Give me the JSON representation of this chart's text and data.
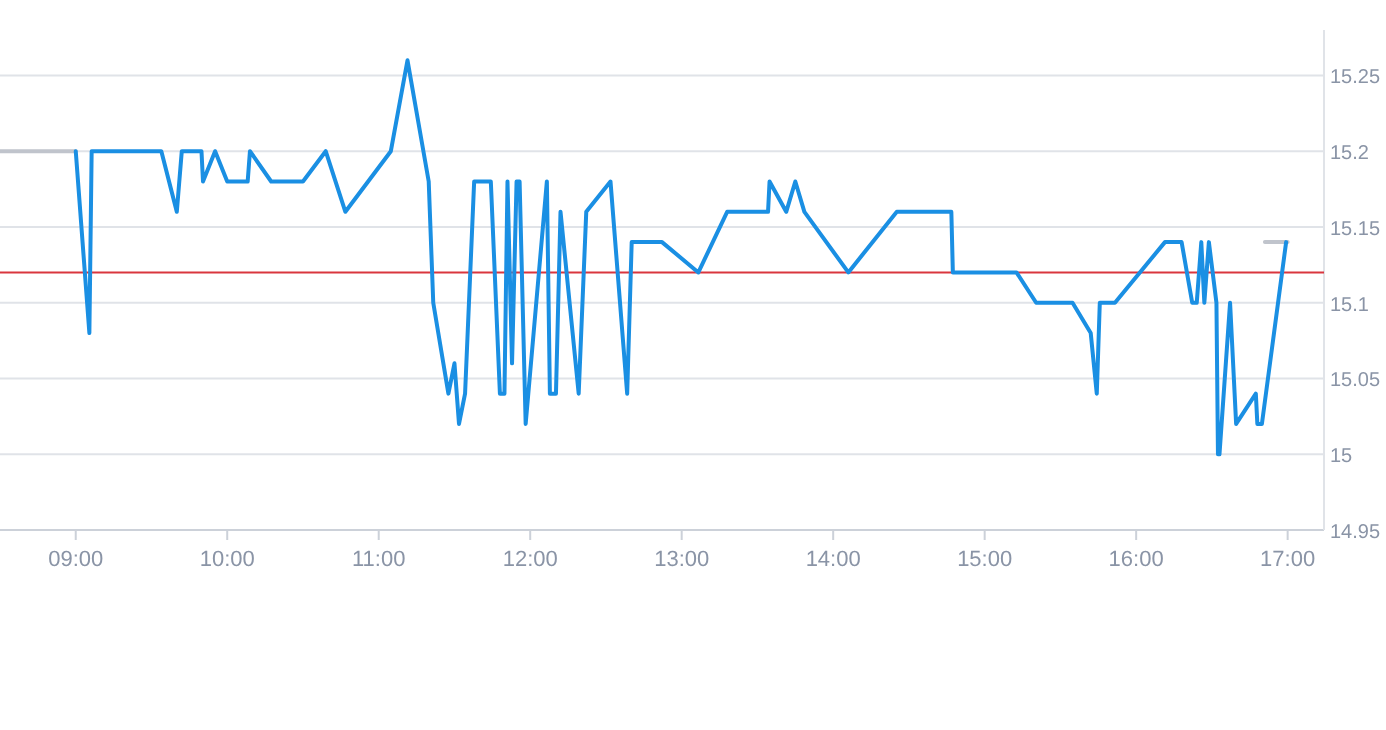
{
  "chart_data": {
    "type": "line",
    "xlim": [
      8.5,
      17.24
    ],
    "ylim": [
      14.95,
      15.28
    ],
    "xticks": [
      {
        "value": 9,
        "label": "09:00"
      },
      {
        "value": 10,
        "label": "10:00"
      },
      {
        "value": 11,
        "label": "11:00"
      },
      {
        "value": 12,
        "label": "12:00"
      },
      {
        "value": 13,
        "label": "13:00"
      },
      {
        "value": 14,
        "label": "14:00"
      },
      {
        "value": 15,
        "label": "15:00"
      },
      {
        "value": 16,
        "label": "16:00"
      },
      {
        "value": 17,
        "label": "17:00"
      }
    ],
    "yticks": [
      14.95,
      15,
      15.05,
      15.1,
      15.15,
      15.2,
      15.25
    ],
    "grid": "y",
    "marker": "none",
    "line_style": "solid",
    "ref_lines": [
      {
        "axis": "y",
        "value": 15.12,
        "color": "#d9363e"
      }
    ],
    "series": [
      {
        "color": "#c0c4cc",
        "x": [
          8.5,
          9.0,
          12.0,
          16.85,
          17.0
        ],
        "values": [
          15.2,
          15.2,
          null,
          15.14,
          15.14
        ]
      },
      {
        "color": "#1a8fe3",
        "x": [
          9.0,
          9.09,
          9.105,
          9.565,
          9.667,
          9.7,
          9.83,
          9.84,
          9.92,
          10.0,
          10.135,
          10.15,
          10.29,
          10.5,
          10.65,
          10.78,
          11.08,
          11.19,
          11.33,
          11.36,
          11.46,
          11.5,
          11.53,
          11.57,
          11.63,
          11.74,
          11.8,
          11.83,
          11.85,
          11.88,
          11.91,
          11.93,
          11.97,
          12.11,
          12.13,
          12.17,
          12.2,
          12.32,
          12.37,
          12.53,
          12.64,
          12.67,
          12.87,
          13.11,
          13.3,
          13.57,
          13.58,
          13.69,
          13.75,
          13.81,
          14.1,
          14.42,
          14.78,
          14.79,
          15.21,
          15.34,
          15.58,
          15.7,
          15.74,
          15.76,
          15.86,
          16.19,
          16.3,
          16.37,
          16.4,
          16.43,
          16.45,
          16.48,
          16.53,
          16.54,
          16.55,
          16.62,
          16.66,
          16.79,
          16.8,
          16.83,
          16.99
        ],
        "values": [
          15.2,
          15.08,
          15.2,
          15.2,
          15.16,
          15.2,
          15.2,
          15.18,
          15.2,
          15.18,
          15.18,
          15.2,
          15.18,
          15.18,
          15.2,
          15.16,
          15.2,
          15.26,
          15.18,
          15.1,
          15.04,
          15.06,
          15.02,
          15.04,
          15.18,
          15.18,
          15.04,
          15.04,
          15.18,
          15.06,
          15.18,
          15.18,
          15.02,
          15.18,
          15.04,
          15.04,
          15.16,
          15.04,
          15.16,
          15.18,
          15.04,
          15.14,
          15.14,
          15.12,
          15.16,
          15.16,
          15.18,
          15.16,
          15.18,
          15.16,
          15.12,
          15.16,
          15.16,
          15.12,
          15.12,
          15.1,
          15.1,
          15.08,
          15.04,
          15.1,
          15.1,
          15.14,
          15.14,
          15.1,
          15.1,
          15.14,
          15.1,
          15.14,
          15.1,
          15.0,
          15.0,
          15.1,
          15.02,
          15.04,
          15.02,
          15.02,
          15.14
        ]
      }
    ]
  }
}
